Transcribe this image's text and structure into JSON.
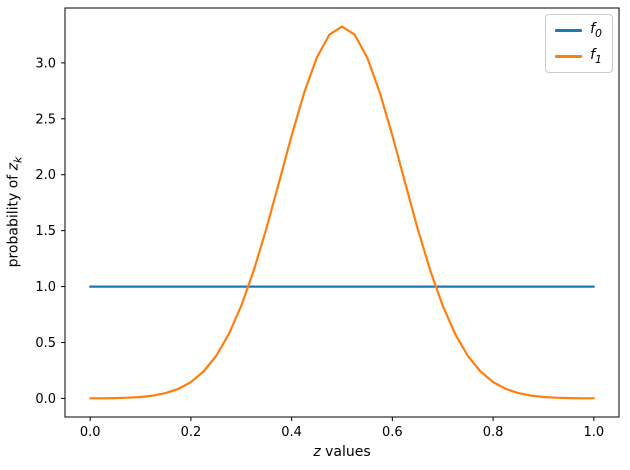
{
  "figure": {
    "background": "#ffffff",
    "title": ""
  },
  "axis": {
    "xlabel_var": "z",
    "xlabel_rest": " values",
    "ylabel_prefix": "probability of ",
    "ylabel_var": "z",
    "ylabel_sub": "k"
  },
  "chart_data": {
    "type": "line",
    "title": "",
    "xlabel": "z values",
    "ylabel": "probability of z_k",
    "grid": false,
    "legend_position": "upper right",
    "xlim": [
      -0.05,
      1.05
    ],
    "ylim": [
      -0.1662,
      3.4907
    ],
    "xtick_labels": [
      "0.0",
      "0.2",
      "0.4",
      "0.6",
      "0.8",
      "1.0"
    ],
    "xtick_values": [
      0.0,
      0.2,
      0.4,
      0.6,
      0.8,
      1.0
    ],
    "ytick_labels": [
      "0.0",
      "0.5",
      "1.0",
      "1.5",
      "2.0",
      "2.5",
      "3.0"
    ],
    "ytick_values": [
      0.0,
      0.5,
      1.0,
      1.5,
      2.0,
      2.5,
      3.0
    ],
    "series": [
      {
        "name": "f0",
        "label_base": "f",
        "label_sub": "0",
        "color": "#1f77b4",
        "description": "uniform density, constant 1.0",
        "x": [
          0.0,
          1.0
        ],
        "values": [
          1.0,
          1.0
        ]
      },
      {
        "name": "f1",
        "label_base": "f",
        "label_sub": "1",
        "color": "#ff7f0e",
        "description": "bell curve, mean 0.5, sd 0.12, peak 3.3245",
        "x": [
          0.0,
          0.025,
          0.05,
          0.075,
          0.1,
          0.125,
          0.15,
          0.175,
          0.2,
          0.225,
          0.25,
          0.275,
          0.3,
          0.325,
          0.35,
          0.375,
          0.4,
          0.425,
          0.45,
          0.475,
          0.5,
          0.525,
          0.55,
          0.575,
          0.6,
          0.625,
          0.65,
          0.675,
          0.7,
          0.725,
          0.75,
          0.775,
          0.8,
          0.825,
          0.85,
          0.875,
          0.9,
          0.925,
          0.95,
          0.975,
          1.0
        ],
        "values": [
          0.0006,
          0.0013,
          0.0029,
          0.0063,
          0.0129,
          0.0252,
          0.0473,
          0.085,
          0.1461,
          0.2406,
          0.3794,
          0.5731,
          0.829,
          1.148,
          1.5221,
          1.9325,
          2.3493,
          2.7347,
          3.0481,
          3.2532,
          3.3245,
          3.2532,
          3.0481,
          2.7347,
          2.3493,
          1.9325,
          1.5221,
          1.148,
          0.829,
          0.5731,
          0.3794,
          0.2406,
          0.1461,
          0.085,
          0.0473,
          0.0252,
          0.0129,
          0.0063,
          0.0029,
          0.0013,
          0.0006
        ]
      }
    ]
  }
}
